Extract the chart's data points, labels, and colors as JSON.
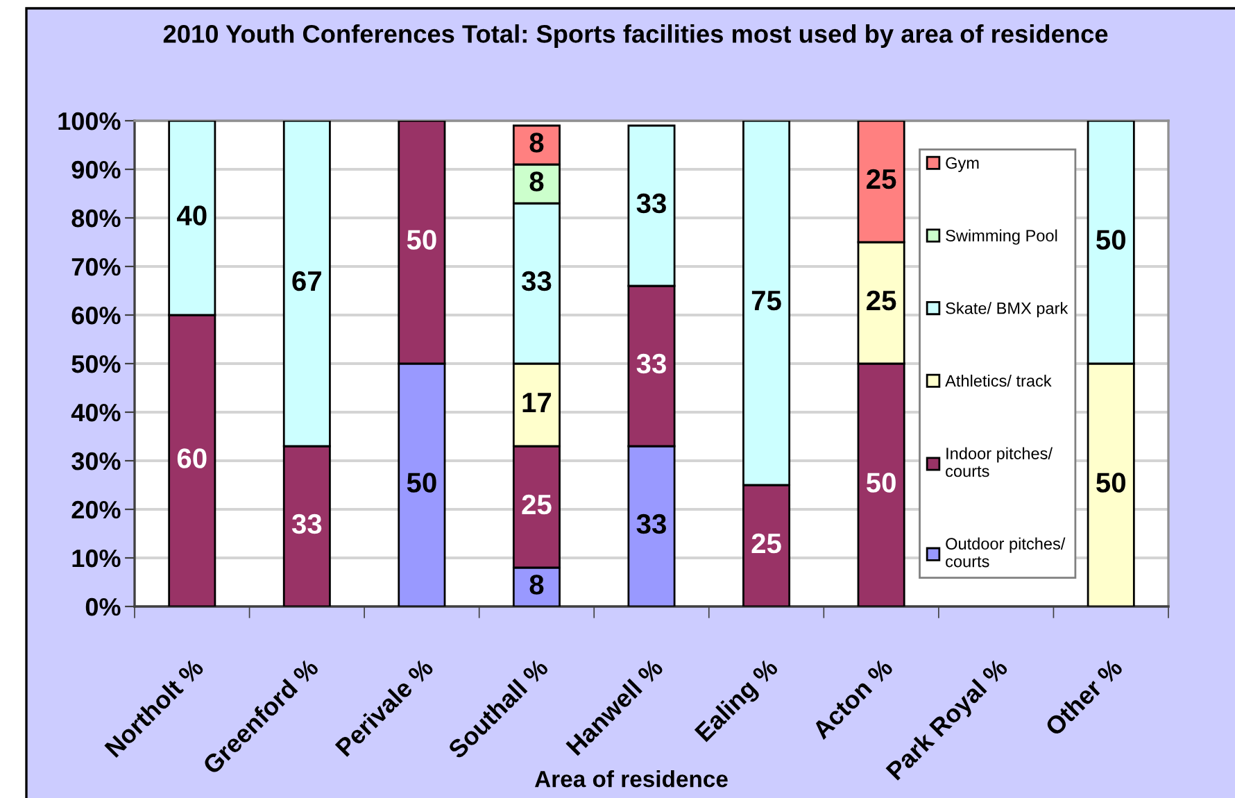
{
  "chart_data": {
    "type": "bar",
    "title": "2010 Youth Conferences Total: Sports facilities most used by area of residence",
    "xlabel": "Area of residence",
    "categories": [
      "Northolt %",
      "Greenford %",
      "Perivale %",
      "Southall %",
      "Hanwell %",
      "Ealing %",
      "Acton %",
      "Park Royal %",
      "Other %"
    ],
    "stacked": true,
    "series": [
      {
        "name": "Outdoor pitches/ courts",
        "color": "#9999ff",
        "values": [
          null,
          null,
          50,
          8,
          33,
          null,
          null,
          null,
          null
        ]
      },
      {
        "name": "Indoor pitches/ courts",
        "color": "#993366",
        "values": [
          60,
          33,
          50,
          25,
          33,
          25,
          50,
          null,
          null
        ]
      },
      {
        "name": "Athletics/ track",
        "color": "#ffffcc",
        "values": [
          null,
          null,
          null,
          17,
          null,
          null,
          25,
          null,
          50
        ]
      },
      {
        "name": "Skate/ BMX park",
        "color": "#ccffff",
        "values": [
          40,
          67,
          null,
          33,
          33,
          75,
          null,
          null,
          50
        ]
      },
      {
        "name": "Swimming Pool",
        "color": "#ccffcc",
        "values": [
          null,
          null,
          null,
          8,
          null,
          null,
          null,
          null,
          null
        ]
      },
      {
        "name": "Gym",
        "color": "#ff8080",
        "values": [
          null,
          null,
          null,
          8,
          null,
          null,
          25,
          null,
          null
        ]
      }
    ],
    "ylim": [
      0,
      100
    ],
    "yticks": [
      {
        "value": 0,
        "label": "0%"
      },
      {
        "value": 10,
        "label": "10%"
      },
      {
        "value": 20,
        "label": "20%"
      },
      {
        "value": 30,
        "label": "30%"
      },
      {
        "value": 40,
        "label": "40%"
      },
      {
        "value": 50,
        "label": "50%"
      },
      {
        "value": 60,
        "label": "60%"
      },
      {
        "value": 70,
        "label": "70%"
      },
      {
        "value": 80,
        "label": "80%"
      },
      {
        "value": 90,
        "label": "90%"
      },
      {
        "value": 100,
        "label": "100%"
      }
    ],
    "grid": "y",
    "legend": "right",
    "data_labels": true
  }
}
